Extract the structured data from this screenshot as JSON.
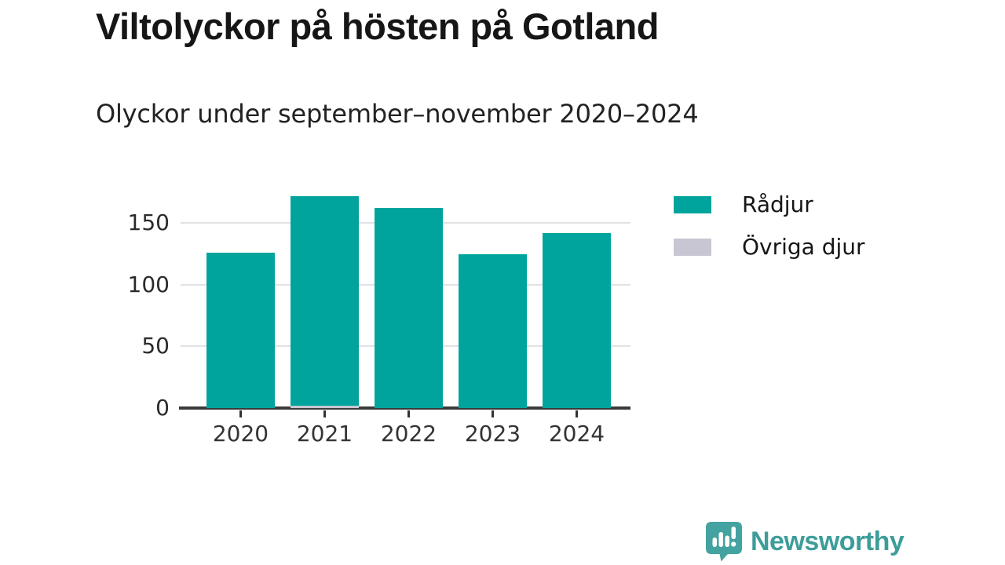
{
  "header": {
    "title": "Viltolyckor på hösten på Gotland",
    "subtitle": "Olyckor under september–november 2020–2024"
  },
  "chart_data": {
    "type": "bar",
    "stacked": true,
    "categories": [
      "2020",
      "2021",
      "2022",
      "2023",
      "2024"
    ],
    "series": [
      {
        "name": "Rådjur",
        "color": "#00a49c",
        "values": [
          126,
          170,
          162,
          125,
          142
        ]
      },
      {
        "name": "Övriga djur",
        "color": "#c8c6d2",
        "values": [
          0,
          2,
          0,
          0,
          0
        ]
      }
    ],
    "stack_order_bottom_to_top": [
      "Övriga djur",
      "Rådjur"
    ],
    "title": "Viltolyckor på hösten på Gotland",
    "subtitle": "Olyckor under september–november 2020–2024",
    "xlabel": "",
    "ylabel": "",
    "ylim": [
      0,
      175
    ],
    "yticks": [
      0,
      50,
      100,
      150
    ],
    "gridline_values": [
      50,
      100,
      150
    ],
    "grid": true,
    "legend_position": "right"
  },
  "legend": {
    "items": [
      {
        "label": "Rådjur",
        "color": "#00a49c"
      },
      {
        "label": "Övriga djur",
        "color": "#c8c6d2"
      }
    ]
  },
  "footer": {
    "brand": "Newsworthy",
    "logo_icon": "bar-chart-speech-bubble-icon",
    "brand_color": "#3d9d9a",
    "icon_color": "#44a3a0"
  },
  "colors": {
    "background": "#ffffff",
    "title_text": "#161616",
    "subtitle_text": "#222222",
    "axis_text": "#333333",
    "axis_line": "#3a3a3a",
    "gridline": "#e2e2e6"
  }
}
